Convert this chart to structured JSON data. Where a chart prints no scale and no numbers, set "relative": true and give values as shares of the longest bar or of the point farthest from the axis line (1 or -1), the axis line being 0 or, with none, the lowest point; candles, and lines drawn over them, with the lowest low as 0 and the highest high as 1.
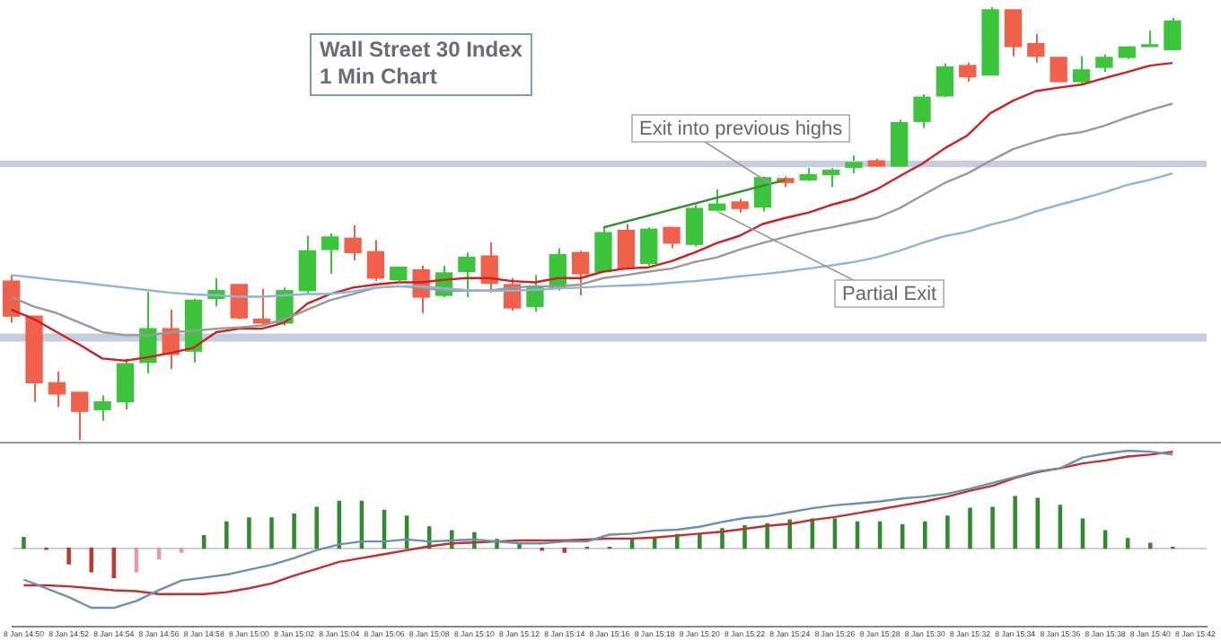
{
  "chart_data": [
    {
      "type": "candlestick",
      "title": "Wall Street 30 Index",
      "subtitle": "1 Min Chart",
      "relative": true,
      "tick_labels": false,
      "grid": false,
      "legend": false,
      "marker": "none",
      "line_style": "solid",
      "categories": [
        null,
        null,
        null,
        null,
        null,
        null,
        null,
        null,
        null,
        null,
        null,
        null,
        null,
        null,
        null,
        null,
        null,
        null,
        null,
        null,
        null,
        null,
        null,
        null,
        null,
        null,
        null,
        null,
        null,
        null,
        null,
        null,
        null,
        null,
        null,
        null,
        null,
        null,
        null,
        null,
        null,
        null,
        null,
        null,
        null,
        null,
        null,
        null,
        null,
        null,
        null,
        null,
        null
      ],
      "ohlc": [
        [
          0.367,
          0.381,
          0.271,
          0.286
        ],
        [
          0.286,
          0.286,
          0.088,
          0.132
        ],
        [
          0.132,
          0.158,
          0.076,
          0.106
        ],
        [
          0.11,
          0.11,
          0,
          0.066
        ],
        [
          0.07,
          0.103,
          0.044,
          0.088
        ],
        [
          0.088,
          0.188,
          0.07,
          0.176
        ],
        [
          0.179,
          0.342,
          0.154,
          0.257
        ],
        [
          0.257,
          0.301,
          0.164,
          0.198
        ],
        [
          0.205,
          0.326,
          0.179,
          0.323
        ],
        [
          0.327,
          0.374,
          0.308,
          0.345
        ],
        [
          0.359,
          0.359,
          0.279,
          0.282
        ],
        [
          0.279,
          0.349,
          0.264,
          0.27
        ],
        [
          0.27,
          0.352,
          0.264,
          0.345
        ],
        [
          0.345,
          0.472,
          0.337,
          0.437
        ],
        [
          0.44,
          0.477,
          0.384,
          0.469
        ],
        [
          0.466,
          0.496,
          0.415,
          0.433
        ],
        [
          0.435,
          0.462,
          0.367,
          0.374
        ],
        [
          0.37,
          0.399,
          0.367,
          0.399
        ],
        [
          0.393,
          0.403,
          0.293,
          0.33
        ],
        [
          0.334,
          0.403,
          0.33,
          0.386
        ],
        [
          0.389,
          0.433,
          0.33,
          0.422
        ],
        [
          0.425,
          0.457,
          0.34,
          0.362
        ],
        [
          0.359,
          0.374,
          0.298,
          0.305
        ],
        [
          0.308,
          0.381,
          0.296,
          0.355
        ],
        [
          0.352,
          0.443,
          0.345,
          0.428
        ],
        [
          0.433,
          0.437,
          0.334,
          0.384
        ],
        [
          0.389,
          0.491,
          0.389,
          0.479
        ],
        [
          0.484,
          0.499,
          0.393,
          0.396
        ],
        [
          0.408,
          0.491,
          0.403,
          0.487
        ],
        [
          0.491,
          0.491,
          0.443,
          0.455
        ],
        [
          0.452,
          0.543,
          0.447,
          0.535
        ],
        [
          0.531,
          0.579,
          0.528,
          0.545
        ],
        [
          0.55,
          0.557,
          0.525,
          0.535
        ],
        [
          0.538,
          0.609,
          0.528,
          0.606
        ],
        [
          0.604,
          0.609,
          0.584,
          0.595
        ],
        [
          0.601,
          0.628,
          0.598,
          0.613
        ],
        [
          0.613,
          0.628,
          0.584,
          0.623
        ],
        [
          0.63,
          0.657,
          0.616,
          0.641
        ],
        [
          0.645,
          0.65,
          0.63,
          0.633
        ],
        [
          0.633,
          0.74,
          0.63,
          0.733
        ],
        [
          0.736,
          0.799,
          0.721,
          0.792
        ],
        [
          0.795,
          0.87,
          0.792,
          0.862
        ],
        [
          0.865,
          0.872,
          0.828,
          0.839
        ],
        [
          0.843,
          1,
          0.843,
          0.994
        ],
        [
          0.994,
          0.994,
          0.887,
          0.909
        ],
        [
          0.916,
          0.938,
          0.872,
          0.887
        ],
        [
          0.884,
          0.884,
          0.828,
          0.828
        ],
        [
          0.828,
          0.887,
          0.824,
          0.855
        ],
        [
          0.861,
          0.891,
          0.85,
          0.884
        ],
        [
          0.884,
          0.909,
          0.88,
          0.908
        ],
        [
          0.909,
          0.946,
          0.909,
          0.913
        ],
        [
          0.902,
          0.975,
          0.902,
          0.968
        ],
        null
      ],
      "colors": [
        "#f0604a",
        "#f0604a",
        "#f0604a",
        "#f0604a",
        "#3cc43c",
        "#3cc43c",
        "#3cc43c",
        "#f0604a",
        "#3cc43c",
        "#3cc43c",
        "#f0604a",
        "#f0604a",
        "#3cc43c",
        "#3cc43c",
        "#3cc43c",
        "#f0604a",
        "#f0604a",
        "#3cc43c",
        "#f0604a",
        "#3cc43c",
        "#3cc43c",
        "#f0604a",
        "#f0604a",
        "#3cc43c",
        "#3cc43c",
        "#f0604a",
        "#3cc43c",
        "#f0604a",
        "#3cc43c",
        "#f0604a",
        "#3cc43c",
        "#3cc43c",
        "#f0604a",
        "#3cc43c",
        "#f0604a",
        "#3cc43c",
        "#3cc43c",
        "#3cc43c",
        "#f0604a",
        "#3cc43c",
        "#3cc43c",
        "#3cc43c",
        "#f0604a",
        "#3cc43c",
        "#f0604a",
        "#f0604a",
        "#f0604a",
        "#3cc43c",
        "#3cc43c",
        "#3cc43c",
        "#3cc43c",
        "#3cc43c",
        null
      ],
      "series": [
        {
          "type": "line",
          "color": "#8fb4d8",
          "values": [
            0.381,
            0.375,
            0.369,
            0.364,
            0.358,
            0.352,
            0.346,
            0.34,
            0.336,
            0.334,
            0.331,
            0.331,
            0.334,
            0.337,
            0.337,
            0.343,
            0.352,
            0.355,
            0.355,
            0.35,
            0.346,
            0.345,
            0.345,
            0.347,
            0.35,
            0.352,
            0.355,
            0.357,
            0.359,
            0.363,
            0.367,
            0.372,
            0.378,
            0.383,
            0.389,
            0.396,
            0.403,
            0.411,
            0.422,
            0.437,
            0.455,
            0.471,
            0.481,
            0.497,
            0.51,
            0.528,
            0.543,
            0.557,
            0.572,
            0.589,
            0.601,
            0.616,
            null
          ]
        },
        {
          "type": "line",
          "color": "#999999",
          "values": [
            0.33,
            0.308,
            0.293,
            0.271,
            0.249,
            0.242,
            0.242,
            0.249,
            0.252,
            0.257,
            0.26,
            0.264,
            0.279,
            0.301,
            0.323,
            0.337,
            0.352,
            0.355,
            0.352,
            0.345,
            0.345,
            0.345,
            0.352,
            0.355,
            0.355,
            0.359,
            0.374,
            0.381,
            0.389,
            0.396,
            0.411,
            0.422,
            0.44,
            0.455,
            0.469,
            0.481,
            0.491,
            0.502,
            0.513,
            0.535,
            0.565,
            0.594,
            0.616,
            0.645,
            0.672,
            0.689,
            0.704,
            0.711,
            0.726,
            0.745,
            0.762,
            0.777,
            null
          ]
        },
        {
          "type": "line",
          "color": "#cc2222",
          "values": [
            0.301,
            0.279,
            0.249,
            0.22,
            0.188,
            0.183,
            0.191,
            0.201,
            0.213,
            0.249,
            0.257,
            0.257,
            0.271,
            0.315,
            0.337,
            0.352,
            0.359,
            0.364,
            0.364,
            0.37,
            0.374,
            0.374,
            0.367,
            0.364,
            0.374,
            0.374,
            0.389,
            0.396,
            0.399,
            0.413,
            0.433,
            0.455,
            0.472,
            0.499,
            0.513,
            0.525,
            0.543,
            0.557,
            0.579,
            0.609,
            0.638,
            0.674,
            0.704,
            0.755,
            0.784,
            0.806,
            0.814,
            0.821,
            0.836,
            0.85,
            0.865,
            0.871,
            null
          ]
        },
        {
          "type": "line",
          "color": "#2f8f2f",
          "values": [
            null,
            null,
            null,
            null,
            null,
            null,
            null,
            null,
            null,
            null,
            null,
            null,
            null,
            null,
            null,
            null,
            null,
            null,
            null,
            null,
            null,
            null,
            null,
            null,
            null,
            null,
            0.491,
            null,
            null,
            null,
            null,
            null,
            null,
            null,
            0.601,
            null,
            null,
            null,
            null,
            null,
            null,
            null,
            null,
            null,
            null,
            null,
            null,
            null,
            null,
            null,
            null,
            null,
            null
          ]
        }
      ],
      "bands": [
        {
          "axis": "y",
          "from": 0.63,
          "to": 0.645,
          "color": "#c5cde0"
        },
        {
          "axis": "y",
          "from": 0.227,
          "to": 0.246,
          "color": "#c5cde0"
        }
      ],
      "annotations": [
        "Exit into previous highs",
        "Partial Exit"
      ]
    },
    {
      "type": "bar",
      "relative": true,
      "tick_labels": "x",
      "grid": false,
      "legend": false,
      "marker": "none",
      "categories": [
        "8 Jan 14:50",
        null,
        "8 Jan 14:52",
        null,
        "8 Jan 14:54",
        null,
        "8 Jan 14:56",
        null,
        "8 Jan 14:58",
        null,
        "8 Jan 15:00",
        null,
        "8 Jan 15:02",
        null,
        "8 Jan 15:04",
        null,
        "8 Jan 15:06",
        null,
        "8 Jan 15:08",
        null,
        "8 Jan 15:10",
        null,
        "8 Jan 15:12",
        null,
        "8 Jan 15:14",
        null,
        "8 Jan 15:16",
        null,
        "8 Jan 15:18",
        null,
        "8 Jan 15:20",
        null,
        "8 Jan 15:22",
        null,
        "8 Jan 15:24",
        null,
        "8 Jan 15:26",
        null,
        "8 Jan 15:28",
        null,
        "8 Jan 15:30",
        null,
        "8 Jan 15:32",
        null,
        "8 Jan 15:34",
        null,
        "8 Jan 15:36",
        null,
        "8 Jan 15:38",
        null,
        "8 Jan 15:40",
        null,
        "8 Jan 15:42"
      ],
      "series": [
        {
          "type": "bar",
          "colors": [
            "#2e8b2e",
            "#c0392b",
            "#c0392b",
            "#c0392b",
            "#c0392b",
            "#e89aa0",
            "#e89aa0",
            "#e89aa0",
            "#2e8b2e",
            "#2e8b2e",
            "#2e8b2e",
            "#2e8b2e",
            "#2e8b2e",
            "#2e8b2e",
            "#2e8b2e",
            "#2e8b2e",
            "#2e8b2e",
            "#2e8b2e",
            "#2e8b2e",
            "#2e8b2e",
            "#2e8b2e",
            "#2e8b2e",
            "#2e8b2e",
            "#c0392b",
            "#c0392b",
            "#2e8b2e",
            "#2e8b2e",
            "#2e8b2e",
            "#2e8b2e",
            "#2e8b2e",
            "#2e8b2e",
            "#2e8b2e",
            "#2e8b2e",
            "#2e8b2e",
            "#2e8b2e",
            "#2e8b2e",
            "#2e8b2e",
            "#2e8b2e",
            "#2e8b2e",
            "#2e8b2e",
            "#2e8b2e",
            "#2e8b2e",
            "#2e8b2e",
            "#2e8b2e",
            "#2e8b2e",
            "#2e8b2e",
            "#2e8b2e",
            "#2e8b2e",
            "#2e8b2e",
            "#2e8b2e",
            "#2e8b2e",
            "#2e8b2e",
            null
          ],
          "values": [
            0.11,
            -0.01,
            -0.16,
            -0.24,
            -0.3,
            -0.24,
            -0.11,
            -0.04,
            0.13,
            0.27,
            0.31,
            0.31,
            0.35,
            0.42,
            0.48,
            0.48,
            0.39,
            0.33,
            0.22,
            0.18,
            0.16,
            0.09,
            0.05,
            -0.02,
            -0.04,
            0.01,
            0.01,
            0.1,
            0.1,
            0.14,
            0.14,
            0.2,
            0.23,
            0.25,
            0.29,
            0.3,
            0.3,
            0.27,
            0.27,
            0.24,
            0.27,
            0.33,
            0.41,
            0.42,
            0.53,
            0.51,
            0.44,
            0.3,
            0.18,
            0.1,
            0.05,
            0.01,
            null
          ]
        },
        {
          "type": "line",
          "color": "#6d8fb0",
          "values": [
            -0.32,
            -0.41,
            -0.5,
            -0.61,
            -0.61,
            -0.54,
            -0.43,
            -0.33,
            -0.3,
            -0.27,
            -0.22,
            -0.17,
            -0.1,
            -0.02,
            0.04,
            0.07,
            0.07,
            0.09,
            0.07,
            0.08,
            0.09,
            0.07,
            0.05,
            0.05,
            0.07,
            0.07,
            0.14,
            0.15,
            0.18,
            0.19,
            0.22,
            0.27,
            0.31,
            0.33,
            0.37,
            0.41,
            0.44,
            0.46,
            0.48,
            0.51,
            0.53,
            0.56,
            0.61,
            0.67,
            0.73,
            0.79,
            0.82,
            0.93,
            0.97,
            1,
            0.99,
            0.96,
            null
          ]
        },
        {
          "type": "line",
          "color": "#c03030",
          "values": [
            -0.38,
            -0.38,
            -0.39,
            -0.41,
            -0.43,
            -0.44,
            -0.47,
            -0.47,
            -0.47,
            -0.45,
            -0.41,
            -0.36,
            -0.28,
            -0.21,
            -0.14,
            -0.1,
            -0.06,
            -0.02,
            0.02,
            0.05,
            0.06,
            0.07,
            0.08,
            0.08,
            0.08,
            0.09,
            0.1,
            0.1,
            0.11,
            0.13,
            0.15,
            0.17,
            0.2,
            0.23,
            0.25,
            0.29,
            0.32,
            0.36,
            0.4,
            0.44,
            0.48,
            0.53,
            0.59,
            0.64,
            0.72,
            0.78,
            0.82,
            0.87,
            0.9,
            0.94,
            0.96,
            0.99,
            null
          ]
        }
      ]
    }
  ]
}
